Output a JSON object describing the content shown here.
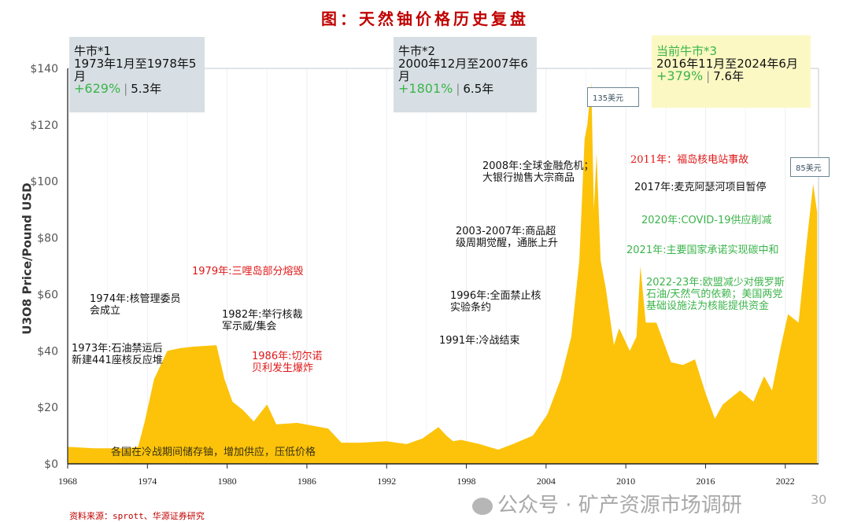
{
  "title": "图：天然铀价格历史复盘",
  "bull_markets": [
    {
      "label": "牛市*1",
      "period": "1973年1月至1978年5月",
      "gain": "+629%",
      "duration": "5.3年"
    },
    {
      "label": "牛市*2",
      "period": "2000年12月至2007年6月",
      "gain": "+1801%",
      "duration": "6.5年"
    },
    {
      "label": "当前牛市*3",
      "period": "2016年11月至2024年6月",
      "gain": "+379%",
      "duration": "7.6年"
    }
  ],
  "annotations": [
    {
      "text": "1973年:石油禁运后\n新建441座核反应堆",
      "color": "black"
    },
    {
      "text": "1974年:核管理委员\n会成立",
      "color": "black"
    },
    {
      "text": "1979年:三哩岛部分熔毁",
      "color": "red"
    },
    {
      "text": "1982年:举行核裁\n军示威/集会",
      "color": "black"
    },
    {
      "text": "1986年:切尔诺\n贝利发生爆炸",
      "color": "red"
    },
    {
      "text": "1991年:冷战结束",
      "color": "black"
    },
    {
      "text": "1996年:全面禁止核\n实验条约",
      "color": "black"
    },
    {
      "text": "2003-2007年:商品超\n级周期觉醒，通胀上升",
      "color": "black"
    },
    {
      "text": "2008年:全球金融危机；\n大银行抛售大宗商品",
      "color": "black"
    },
    {
      "text": "2011年：福岛核电站事故",
      "color": "red"
    },
    {
      "text": "2017年:麦克阿瑟河项目暂停",
      "color": "black"
    },
    {
      "text": "2020年:COVID-19供应削减",
      "color": "green"
    },
    {
      "text": "2021年:主要国家承诺实现碳中和",
      "color": "green"
    },
    {
      "text": "2022-23年:欧盟减少对俄罗斯\n石油/天然气的依赖；美国两党\n基础设施法为核能提供资金",
      "color": "green"
    },
    {
      "text": "各国在冷战期间储存铀，增加供应，压低价格",
      "color": "dark"
    }
  ],
  "peak_labels": [
    "135美元",
    "85美元"
  ],
  "source": "资料来源：sprott、华源证券研究",
  "watermark": "公众号 · 矿产资源市场调研",
  "page_number": "30",
  "colors": {
    "area": "#fcc30a",
    "title": "#c00000",
    "green": "#3cb44b",
    "red": "#e01818"
  },
  "chart_data": {
    "type": "area",
    "title": "图：天然铀价格历史复盘",
    "xlabel": "",
    "ylabel": "U3O8 Price/Pound USD",
    "xlim": [
      1968,
      2024.5
    ],
    "ylim": [
      0,
      140
    ],
    "x_ticks": [
      "1968",
      "1974",
      "1980",
      "1986",
      "1992",
      "1998",
      "2004",
      "2010",
      "2016",
      "2022"
    ],
    "y_ticks": [
      "$0",
      "$20",
      "$40",
      "$60",
      "$80",
      "$100",
      "$120",
      "$140"
    ],
    "grid": "vertical",
    "series": [
      {
        "x": [
          1968,
          1970,
          1972.5,
          1973.3,
          1973.8,
          1974.5,
          1975.5,
          1976.5,
          1977.5,
          1979.2,
          1979.8,
          1980.4,
          1981.2,
          1982,
          1983,
          1983.7,
          1985.3,
          1987.6,
          1988.6,
          1990,
          1992,
          1993.5,
          1994.7,
          1995.9,
          1996.5,
          1997,
          1997.6,
          1999,
          2000.4,
          2001.5,
          2003,
          2004.1,
          2005.1,
          2005.9,
          2006.5,
          2006.9,
          2007.1,
          2007.4,
          2007.6,
          2007.8,
          2008.1,
          2008.5,
          2009.1,
          2009.5,
          2010.3,
          2010.8,
          2011.1,
          2011.5,
          2012.3,
          2013.4,
          2014.3,
          2015.2,
          2016.0,
          2016.7,
          2017.3,
          2018.6,
          2019.6,
          2020.4,
          2021,
          2021.6,
          2022.2,
          2023,
          2023.6,
          2024.1,
          2024.4
        ],
        "values": [
          6,
          5.5,
          5.5,
          6,
          15,
          30,
          40,
          41,
          41.5,
          42,
          30,
          22,
          19,
          15,
          21,
          14,
          14.5,
          12.5,
          7.5,
          7.5,
          8,
          7,
          9,
          13,
          10,
          8,
          8.5,
          7,
          5,
          7,
          10,
          17.5,
          30,
          45,
          72,
          115,
          120,
          135,
          90,
          110,
          72,
          62,
          42,
          48,
          40,
          45,
          70,
          50,
          50,
          36,
          35,
          37,
          25,
          16,
          21,
          26,
          22,
          31,
          26,
          40,
          53,
          50,
          78,
          99,
          89
        ]
      }
    ]
  }
}
